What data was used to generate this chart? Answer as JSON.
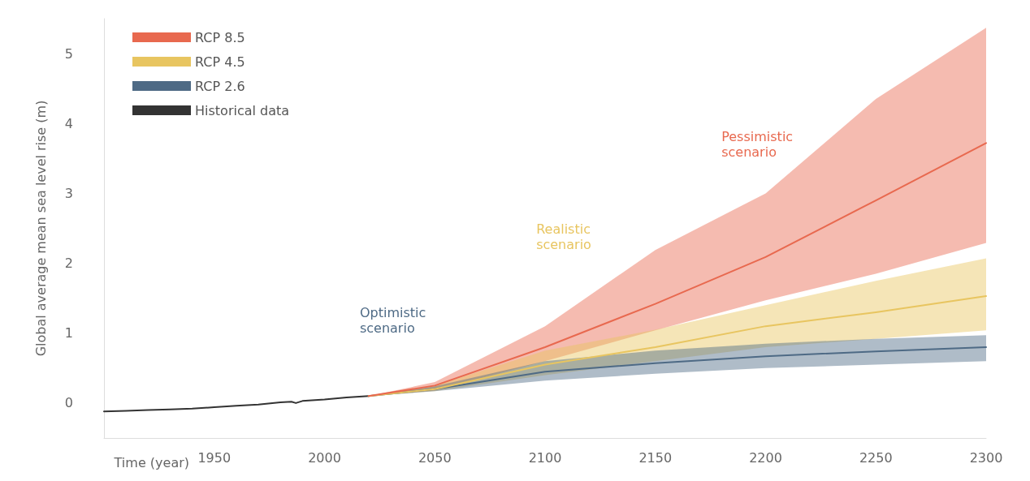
{
  "chart_data": {
    "type": "line",
    "xlabel": "Time (year)",
    "ylabel": "Global average mean sea level rise (m)",
    "xlim": [
      1900,
      2300
    ],
    "xticks": [
      1950,
      2000,
      2050,
      2100,
      2150,
      2200,
      2250,
      2300
    ],
    "ylim": [
      -0.5,
      5.5
    ],
    "yticks": [
      0,
      1,
      2,
      3,
      4,
      5
    ],
    "legend": "top left",
    "grid": false,
    "series": [
      {
        "name": "RCP 8.5",
        "color": "#e8694f",
        "x": [
          2020,
          2050,
          2100,
          2150,
          2200,
          2250,
          2300
        ],
        "values": [
          0.1,
          0.25,
          0.8,
          1.42,
          2.09,
          2.9,
          3.72
        ],
        "lower": [
          0.1,
          0.18,
          0.6,
          1.04,
          1.47,
          1.85,
          2.29
        ],
        "upper": [
          0.1,
          0.3,
          1.1,
          2.19,
          3.0,
          4.35,
          5.37
        ]
      },
      {
        "name": "RCP 4.5",
        "color": "#e8c560",
        "x": [
          2020,
          2050,
          2100,
          2150,
          2200,
          2250,
          2300
        ],
        "values": [
          0.1,
          0.2,
          0.55,
          0.8,
          1.1,
          1.3,
          1.53
        ],
        "lower": [
          0.1,
          0.17,
          0.4,
          0.6,
          0.8,
          0.92,
          1.04
        ],
        "upper": [
          0.1,
          0.25,
          0.75,
          1.05,
          1.4,
          1.75,
          2.07
        ]
      },
      {
        "name": "RCP 2.6",
        "color": "#4e6a85",
        "x": [
          2020,
          2050,
          2100,
          2150,
          2200,
          2250,
          2300
        ],
        "values": [
          0.1,
          0.2,
          0.45,
          0.57,
          0.67,
          0.74,
          0.8
        ],
        "lower": [
          0.1,
          0.17,
          0.32,
          0.42,
          0.5,
          0.55,
          0.6
        ],
        "upper": [
          0.1,
          0.24,
          0.6,
          0.75,
          0.85,
          0.92,
          0.97
        ]
      },
      {
        "name": "Historical data",
        "color": "#333333",
        "x": [
          1900,
          1910,
          1920,
          1930,
          1940,
          1950,
          1960,
          1970,
          1980,
          1985,
          1987,
          1990,
          2000,
          2010,
          2020
        ],
        "values": [
          -0.12,
          -0.11,
          -0.1,
          -0.09,
          -0.08,
          -0.06,
          -0.04,
          -0.02,
          0.01,
          0.02,
          0.0,
          0.03,
          0.05,
          0.08,
          0.1
        ]
      }
    ],
    "annotations": [
      "Pessimistic scenario",
      "Realistic scenario",
      "Optimistic scenario"
    ]
  }
}
